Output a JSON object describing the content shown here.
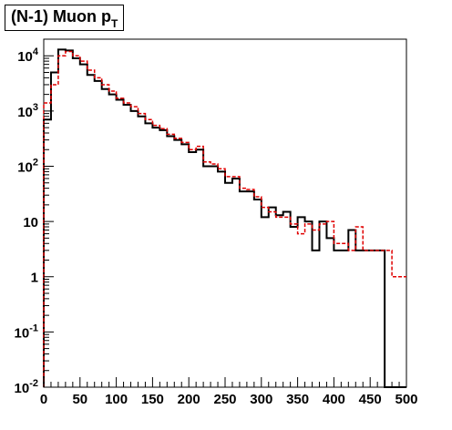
{
  "chart_data": {
    "type": "line",
    "title": {
      "main": "(N-1) Muon p",
      "sub": "T"
    },
    "x_ticks": [
      0,
      50,
      100,
      150,
      200,
      250,
      300,
      350,
      400,
      450,
      500
    ],
    "y_ticks": [
      {
        "base": "10",
        "exp": "-2"
      },
      {
        "base": "10",
        "exp": "-1"
      },
      {
        "base": "1",
        "exp": ""
      },
      {
        "base": "10",
        "exp": ""
      },
      {
        "base": "10",
        "exp": "2"
      },
      {
        "base": "10",
        "exp": "3"
      },
      {
        "base": "10",
        "exp": "4"
      }
    ],
    "xlim": [
      0,
      500
    ],
    "ylim": [
      0.01,
      20000
    ],
    "log_y": true,
    "bin_width": 10,
    "series": [
      {
        "style": "solid",
        "color": "#000000",
        "values": [
          700,
          5000,
          13000,
          12500,
          9000,
          7000,
          4500,
          3500,
          2500,
          2000,
          1600,
          1300,
          1000,
          800,
          600,
          500,
          450,
          350,
          300,
          250,
          180,
          200,
          100,
          100,
          80,
          50,
          60,
          35,
          35,
          25,
          12,
          18,
          13,
          15,
          8,
          12,
          10,
          3,
          10,
          5,
          3,
          3,
          7,
          3,
          3,
          3,
          3,
          0.01,
          0.01,
          0.01
        ]
      },
      {
        "style": "dashed",
        "color": "#e00000",
        "values": [
          1400,
          3000,
          10000,
          12000,
          10000,
          8000,
          5500,
          4000,
          3000,
          2300,
          1700,
          1400,
          1200,
          900,
          700,
          550,
          480,
          380,
          320,
          270,
          200,
          230,
          120,
          110,
          90,
          65,
          65,
          40,
          38,
          28,
          18,
          15,
          12,
          12,
          9,
          6,
          9,
          7,
          9,
          10,
          4,
          4,
          3,
          8,
          3,
          3,
          3,
          3,
          1,
          1
        ]
      }
    ]
  }
}
